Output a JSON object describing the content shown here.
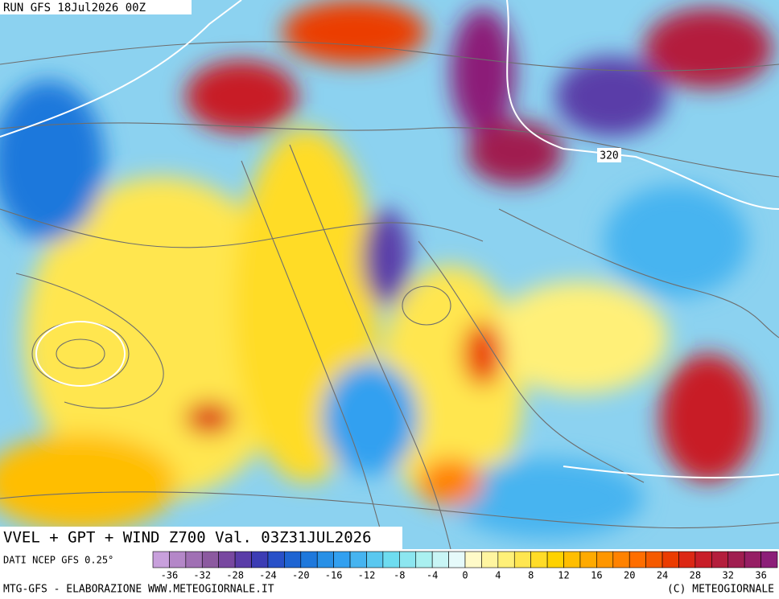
{
  "header": {
    "run": "RUN GFS 18Jul2026 00Z"
  },
  "map": {
    "contour_label": "320",
    "title": "VVEL + GPT + WIND Z700 Val. 03Z31JUL2026",
    "source": "DATI NCEP GFS 0.25°"
  },
  "colorbar": {
    "ticks": [
      -36,
      -32,
      -28,
      -24,
      -20,
      -16,
      -12,
      -8,
      -4,
      0,
      4,
      8,
      12,
      16,
      20,
      24,
      28,
      32,
      36
    ],
    "colors": [
      "#c8a0dc",
      "#b487c8",
      "#a070b4",
      "#8c5aa0",
      "#7848a0",
      "#5a3ca8",
      "#3c3cb4",
      "#2850c8",
      "#1e64d2",
      "#1e78dc",
      "#2890e6",
      "#32a0f0",
      "#46b4f0",
      "#5ac8f0",
      "#6edcf0",
      "#8ce6f0",
      "#aaf0f0",
      "#c8f5f5",
      "#e6fafa",
      "#fffac8",
      "#fff5a0",
      "#fff078",
      "#ffe650",
      "#ffdc28",
      "#ffd200",
      "#ffbe00",
      "#ffaa00",
      "#ff9600",
      "#ff8200",
      "#ff6e00",
      "#f55a00",
      "#eb3c00",
      "#dc2814",
      "#c81e28",
      "#b41e3c",
      "#a01e50",
      "#961e64",
      "#8c1e78"
    ]
  },
  "footer": {
    "left": "MTG-GFS - ELABORAZIONE WWW.METEOGIORNALE.IT",
    "right": "(C) METEOGIORNALE"
  }
}
